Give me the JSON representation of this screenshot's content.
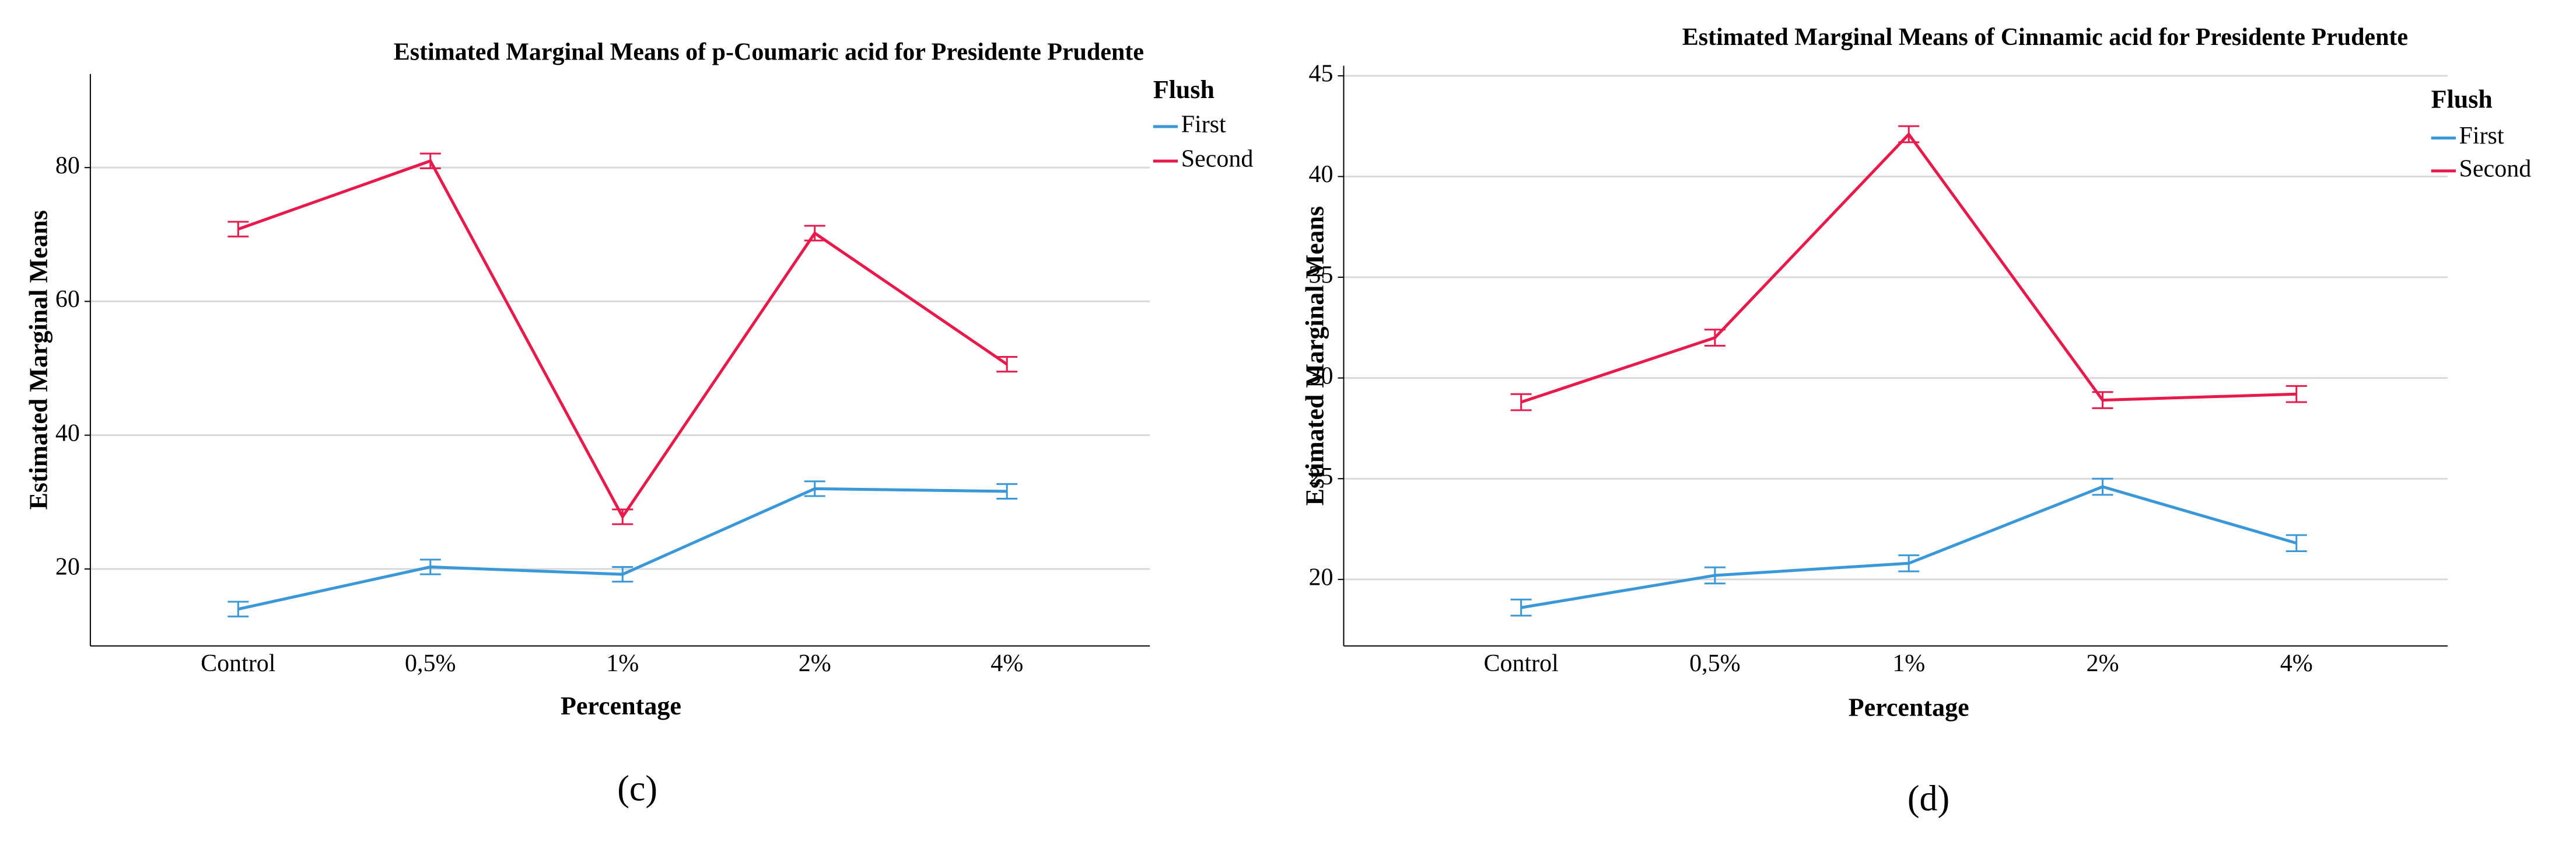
{
  "chart_data": [
    {
      "type": "line",
      "title": "Estimated Marginal Means of p-Coumaric acid for Presidente Prudente",
      "x_label": "Percentage",
      "y_label": "Estimated Marginal Means",
      "legend_title": "Flush",
      "panel_label": "(c)",
      "categories": [
        "Control",
        "0,5%",
        "1%",
        "2%",
        "4%"
      ],
      "series": [
        {
          "name": "First",
          "color": "#3a98d8",
          "values": [
            14.0,
            20.3,
            19.2,
            32.0,
            31.6
          ],
          "errors": [
            1.1,
            1.1,
            1.1,
            1.1,
            1.1
          ]
        },
        {
          "name": "Second",
          "color": "#e8194b",
          "values": [
            70.8,
            81.0,
            27.8,
            70.2,
            50.6
          ],
          "errors": [
            1.1,
            1.1,
            1.1,
            1.1,
            1.1
          ]
        }
      ],
      "ylim": [
        8.5,
        94
      ],
      "yticks": [
        20,
        40,
        60,
        80
      ],
      "grid": true
    },
    {
      "type": "line",
      "title": "Estimated Marginal Means of Cinnamic acid for Presidente Prudente",
      "x_label": "Percentage",
      "y_label": "Estimated Marginal Means",
      "legend_title": "Flush",
      "panel_label": "(d)",
      "categories": [
        "Control",
        "0,5%",
        "1%",
        "2%",
        "4%"
      ],
      "series": [
        {
          "name": "First",
          "color": "#3a98d8",
          "values": [
            18.6,
            20.2,
            20.8,
            24.6,
            21.8
          ],
          "errors": [
            0.4,
            0.4,
            0.4,
            0.4,
            0.4
          ]
        },
        {
          "name": "Second",
          "color": "#e8194b",
          "values": [
            28.8,
            32.0,
            42.1,
            28.9,
            29.2
          ],
          "errors": [
            0.4,
            0.4,
            0.4,
            0.4,
            0.4
          ]
        }
      ],
      "ylim": [
        16.7,
        45.5
      ],
      "yticks": [
        20,
        25,
        30,
        35,
        40,
        45
      ],
      "grid": true
    }
  ]
}
